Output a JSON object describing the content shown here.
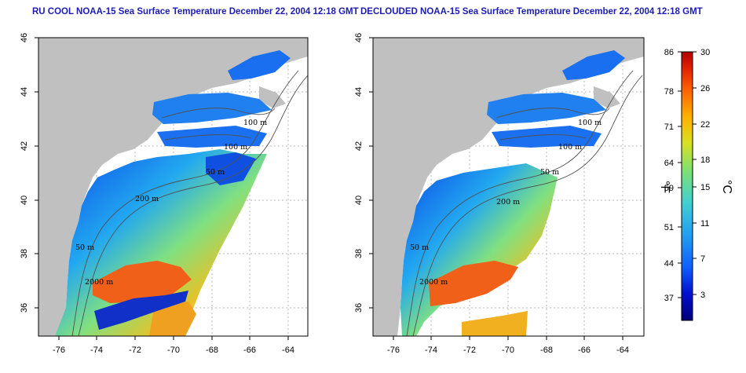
{
  "titles": {
    "left": "RU COOL NOAA-15 Sea Surface Temperature December 22, 2004 12:18 GMT",
    "right": "DECLOUDED NOAA-15 Sea Surface Temperature December 22, 2004 12:18 GMT"
  },
  "axes": {
    "lon_ticks": [
      "-76",
      "-74",
      "-72",
      "-70",
      "-68",
      "-66",
      "-64"
    ],
    "lat_ticks": [
      "46",
      "44",
      "42",
      "40",
      "38",
      "36"
    ]
  },
  "contours": {
    "labels": [
      "100 m",
      "100 m",
      "50 m",
      "200 m",
      "50 m",
      "2000 m"
    ]
  },
  "colorbar": {
    "fahrenheit_label": "°F",
    "celsius_label": "°C",
    "fahrenheit_ticks": [
      "86",
      "78",
      "71",
      "64",
      "59",
      "51",
      "44",
      "37"
    ],
    "celsius_ticks": [
      "30",
      "26",
      "22",
      "18",
      "15",
      "11",
      "7",
      "3"
    ],
    "colors": [
      "#00007a",
      "#0010d0",
      "#1060ff",
      "#20a0f0",
      "#40d0d0",
      "#80e070",
      "#d8e020",
      "#ffb000",
      "#ff6000",
      "#e02000",
      "#b00000"
    ]
  },
  "colors": {
    "land": "#c0c0c0",
    "title": "#1c1cb4"
  }
}
